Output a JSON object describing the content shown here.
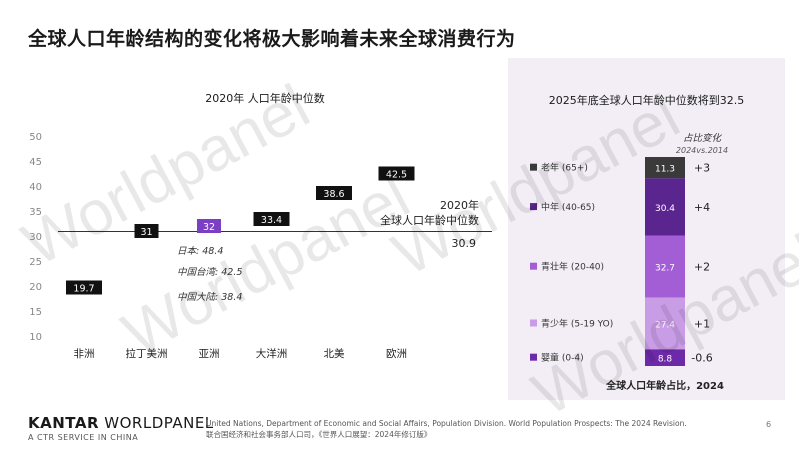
{
  "title": "全球人口年龄结构的变化将极大影响着未来全球消费行为",
  "chart_data": [
    {
      "type": "bar",
      "title": "2020年 人口年龄中位数",
      "categories": [
        "非洲",
        "拉丁美洲",
        "亚洲",
        "大洋洲",
        "北美",
        "欧洲"
      ],
      "values": [
        19.7,
        31,
        32,
        33.4,
        38.6,
        42.5
      ],
      "value_labels": [
        "19.7",
        "31",
        "32",
        "33.4",
        "38.6",
        "42.5"
      ],
      "highlight_color": "#7b3fc4",
      "marker_color": "#111111",
      "highlight_category": "亚洲",
      "y_ticks": [
        "50",
        "45",
        "40",
        "35",
        "30",
        "25",
        "20",
        "15",
        "10"
      ],
      "ylim": [
        10,
        50
      ],
      "reference_line": {
        "value": 30.9,
        "label_line1": "2020年",
        "label_line2": "全球人口年龄中位数",
        "value_label": "30.9"
      },
      "annotations": [
        "日本: 48.4",
        "中国台湾: 42.5",
        "中国大陆: 38.4"
      ]
    },
    {
      "type": "stacked_bar",
      "title": "2025年底全球人口年龄中位数将到32.5",
      "header": "占比变化",
      "subheader": "2024vs.2014",
      "xlabel": "全球人口年龄占比，2024",
      "segments": [
        {
          "name": "老年 (65+)",
          "value": 11.3,
          "value_label": "11.3",
          "change": "+3",
          "color": "#3a3a3a"
        },
        {
          "name": "中年 (40-65)",
          "value": 30.4,
          "value_label": "30.4",
          "change": "+4",
          "color": "#5b2590"
        },
        {
          "name": "青壮年 (20-40)",
          "value": 32.7,
          "value_label": "32.7",
          "change": "+2",
          "color": "#a35ed6"
        },
        {
          "name": "青少年 (5-19 YO)",
          "value": 27.4,
          "value_label": "27.4",
          "change": "+1",
          "color": "#c99de6"
        },
        {
          "name": "婴童 (0-4)",
          "value": 8.8,
          "value_label": "8.8",
          "change": "-0.6",
          "color": "#6c2aa8"
        }
      ]
    }
  ],
  "footer": {
    "brand_bold": "KANTAR",
    "brand_rest": " WORLDPANEL",
    "sub": "A CTR SERVICE IN CHINA",
    "source_en": "United Nations, Department of Economic and Social Affairs, Population Division. World Population Prospects: The 2024 Revision.",
    "source_cn": "联合国经济和社会事务部人口司，《世界人口展望：2024年修订版》",
    "page": "6"
  },
  "watermark": "Worldpanel"
}
